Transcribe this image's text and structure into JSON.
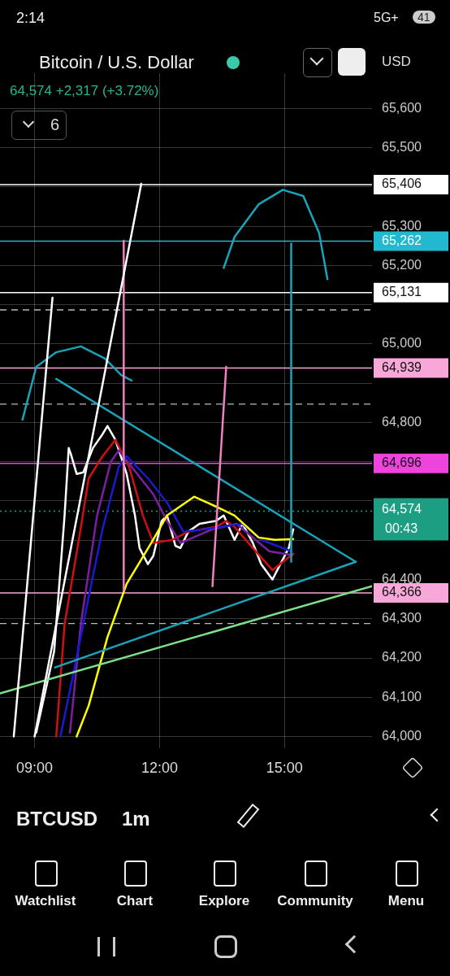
{
  "chart_data": {
    "type": "line",
    "title": "Bitcoin / U.S. Dollar",
    "subtitle": "64,574 +2,317 (+3.72%)",
    "xlim": [
      8.17,
      17.1
    ],
    "ylim": [
      63970,
      65690
    ],
    "xticks": [
      {
        "value": 9,
        "label": "09:00"
      },
      {
        "value": 12,
        "label": "12:00"
      },
      {
        "value": 15,
        "label": "15:00"
      }
    ],
    "yticks": [
      {
        "value": 64000,
        "label": "64,000"
      },
      {
        "value": 64100,
        "label": "64,100"
      },
      {
        "value": 64200,
        "label": "64,200"
      },
      {
        "value": 64300,
        "label": "64,300"
      },
      {
        "value": 64400,
        "label": "64,400"
      },
      {
        "value": 64500,
        "label": null
      },
      {
        "value": 64600,
        "label": null
      },
      {
        "value": 64700,
        "label": null
      },
      {
        "value": 64800,
        "label": "64,800"
      },
      {
        "value": 64900,
        "label": null
      },
      {
        "value": 65000,
        "label": "65,000"
      },
      {
        "value": 65100,
        "label": null
      },
      {
        "value": 65200,
        "label": "65,200"
      },
      {
        "value": 65300,
        "label": "65,300"
      },
      {
        "value": 65400,
        "label": null
      },
      {
        "value": 65500,
        "label": "65,500"
      },
      {
        "value": 65600,
        "label": "65,600"
      }
    ],
    "grid": true,
    "legend": false,
    "marker": "none",
    "series": [
      {
        "color": "#ffffff",
        "x": [
          8.5,
          9.43
        ],
        "values": [
          64000,
          65118
        ]
      },
      {
        "color": "#ffffff",
        "x": [
          9.0,
          11.56
        ],
        "values": [
          64000,
          65408
        ]
      },
      {
        "color": "#f080c0",
        "x": [
          11.14,
          11.14
        ],
        "values": [
          64373,
          65263
        ]
      },
      {
        "color": "#f080c0",
        "x": [
          13.27,
          13.6
        ],
        "values": [
          64383,
          64942
        ]
      },
      {
        "color": "#1aa3b8",
        "x": [
          9.52,
          16.71
        ],
        "values": [
          64911,
          64445
        ]
      },
      {
        "color": "#1aa3b8",
        "x": [
          9.49,
          16.71
        ],
        "values": [
          64176,
          64445
        ]
      },
      {
        "color": "#7ee08a",
        "x": [
          8.17,
          17.1
        ],
        "values": [
          64110,
          64383
        ]
      },
      {
        "color": "#1aa3b8",
        "x": [
          15.16,
          15.16
        ],
        "values": [
          64445,
          65256
        ]
      },
      {
        "color": "#1aa3b8",
        "x": [
          8.71,
          9.04,
          9.52,
          10.11,
          10.69,
          11.08,
          11.33
        ],
        "values": [
          64807,
          64942,
          64979,
          64994,
          64963,
          64921,
          64907
        ]
      },
      {
        "color": "#1aa3b8",
        "x": [
          13.54,
          13.8,
          14.38,
          14.96,
          15.45,
          15.83,
          16.03
        ],
        "values": [
          65194,
          65273,
          65356,
          65393,
          65377,
          65283,
          65165
        ]
      },
      {
        "color": "#ffff00",
        "x": [
          10.01,
          10.3,
          10.75,
          11.21,
          11.8,
          12.18,
          12.83,
          13.35,
          13.8,
          14.38,
          14.77,
          15.21
        ],
        "values": [
          64000,
          64079,
          64253,
          64389,
          64493,
          64563,
          64611,
          64586,
          64563,
          64507,
          64501,
          64503
        ]
      },
      {
        "color": "#1a1ad0",
        "x": [
          9.62,
          9.91,
          10.3,
          10.63,
          11.02,
          11.21,
          11.72,
          12.18,
          12.57,
          13.08,
          13.47,
          13.99,
          14.44,
          15.16
        ],
        "values": [
          64000,
          64149,
          64356,
          64528,
          64687,
          64714,
          64658,
          64596,
          64522,
          64528,
          64534,
          64542,
          64501,
          64472
        ]
      },
      {
        "color": "#7b1fa2",
        "x": [
          9.85,
          10.11,
          10.5,
          10.83,
          11.02,
          11.33,
          11.85,
          12.18,
          12.5,
          13.27,
          13.85,
          14.63,
          15.19
        ],
        "values": [
          64010,
          64286,
          64563,
          64700,
          64729,
          64687,
          64617,
          64549,
          64493,
          64528,
          64542,
          64472,
          64462
        ]
      },
      {
        "color": "#d01010",
        "x": [
          9.52,
          9.72,
          10.05,
          10.3,
          10.63,
          10.94,
          11.27,
          11.6,
          11.85,
          12.3,
          12.69,
          13.35,
          13.6,
          13.8,
          14.24,
          14.71,
          15.21
        ],
        "values": [
          64000,
          64286,
          64493,
          64658,
          64714,
          64756,
          64687,
          64563,
          64493,
          64501,
          64522,
          64534,
          64549,
          64534,
          64480,
          64424,
          64466
        ]
      },
      {
        "color": "#ffffff",
        "x": [
          9.04,
          9.47,
          9.72,
          9.82,
          9.87,
          10.01,
          10.17,
          10.4,
          10.63,
          10.75,
          10.94,
          11.21,
          11.41,
          11.52,
          11.72,
          11.85,
          12.05,
          12.18,
          12.38,
          12.5,
          12.69,
          12.96,
          13.35,
          13.54,
          13.8,
          13.99,
          14.24,
          14.44,
          14.71,
          14.9,
          15.1,
          15.21
        ],
        "values": [
          64010,
          64217,
          64563,
          64735,
          64720,
          64669,
          64673,
          64735,
          64770,
          64791,
          64756,
          64669,
          64563,
          64480,
          64439,
          64460,
          64549,
          64563,
          64486,
          64480,
          64522,
          64542,
          64549,
          64563,
          64501,
          64542,
          64493,
          64439,
          64400,
          64439,
          64480,
          64528
        ]
      }
    ],
    "ref_lines": [
      {
        "axis": "y",
        "value": 65406,
        "label": "65,406",
        "color": "#ffffff"
      },
      {
        "axis": "y",
        "value": 65262,
        "label": "65,262",
        "color": "#22b8d0"
      },
      {
        "axis": "y",
        "value": 65131,
        "label": "65,131",
        "color": "#ffffff"
      },
      {
        "axis": "y",
        "value": 65087,
        "color": "#bbbbbb",
        "line_style": "dashed"
      },
      {
        "axis": "y",
        "value": 64939,
        "label": "64,939",
        "color": "#f7a8d8"
      },
      {
        "axis": "y",
        "value": 64847,
        "color": "#bbbbbb",
        "line_style": "dashed"
      },
      {
        "axis": "y",
        "value": 64696,
        "label": "64,696",
        "color": "#ee44dd"
      },
      {
        "axis": "y",
        "value": 64574,
        "label": "64,574",
        "color": "#1b9e82",
        "line_style": "dotted"
      },
      {
        "axis": "y",
        "value": 64366,
        "label": "64,366",
        "color": "#f7a8d8"
      },
      {
        "axis": "y",
        "value": 64288,
        "color": "#bbbbbb",
        "line_style": "dashed"
      }
    ],
    "annotations": [
      "2:14",
      "5G+",
      "41",
      "6",
      "USD",
      "00:43",
      "BTCUSD",
      "1m",
      "Watchlist",
      "Chart",
      "Explore",
      "Community",
      "Menu"
    ]
  }
}
